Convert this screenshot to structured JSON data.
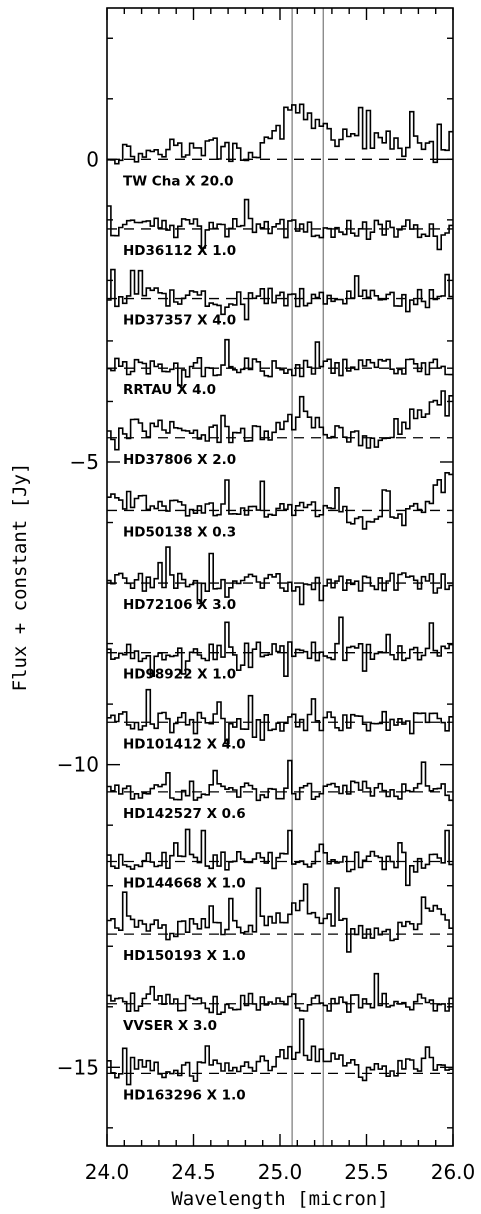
{
  "chart_data": {
    "type": "line",
    "xlabel": "Wavelength [micron]",
    "ylabel": "Flux + constant [Jy]",
    "xlim": [
      24.0,
      26.0
    ],
    "ylim": [
      -16.3,
      2.5
    ],
    "x_ticks": [
      24.0,
      24.5,
      25.0,
      25.5,
      26.0
    ],
    "x_tick_labels": [
      "24.0",
      "24.5",
      "25.0",
      "25.5",
      "26.0"
    ],
    "y_ticks": [
      0,
      -5,
      -10,
      -15
    ],
    "y_tick_labels": [
      "0",
      "−5",
      "−10",
      "−15"
    ],
    "vertical_lines": [
      25.07,
      25.25
    ],
    "series": [
      {
        "name": "TW Cha X 20.0",
        "offset": 0.0,
        "profile": "tw",
        "x": [
          24.0,
          24.1,
          24.2,
          24.3,
          24.4,
          24.5,
          24.6,
          24.7,
          24.8,
          24.9,
          25.0,
          25.05,
          25.1,
          25.15,
          25.2,
          25.3,
          25.4,
          25.5,
          25.6,
          25.7,
          25.8,
          25.9,
          26.0
        ],
        "y": [
          0.05,
          0.1,
          0.05,
          0.2,
          0.2,
          0.1,
          0.2,
          0.1,
          0.05,
          0.2,
          0.4,
          0.8,
          0.9,
          0.7,
          0.6,
          0.3,
          0.4,
          0.3,
          0.4,
          0.2,
          0.2,
          0.1,
          0.4
        ]
      },
      {
        "name": "HD36112 X 1.0",
        "offset": -1.15,
        "profile": "flat"
      },
      {
        "name": "HD37357 X 4.0",
        "offset": -2.3,
        "profile": "flat"
      },
      {
        "name": "RRTAU X 4.0",
        "offset": -3.45,
        "profile": "flat"
      },
      {
        "name": "HD37806 X 2.0",
        "offset": -4.6,
        "profile": "bump",
        "x": [
          24.0,
          24.2,
          24.4,
          24.6,
          24.8,
          25.0,
          25.1,
          25.2,
          25.3,
          25.4,
          25.5,
          25.6,
          25.7,
          25.8,
          25.9,
          26.0
        ],
        "y": [
          0.1,
          0.15,
          0.1,
          0.05,
          0.05,
          0.1,
          0.3,
          0.25,
          0.1,
          0.0,
          -0.1,
          0.0,
          0.2,
          0.4,
          0.6,
          0.8
        ]
      },
      {
        "name": "HD50138 X 0.3",
        "offset": -5.8,
        "profile": "bump",
        "x": [
          24.0,
          24.2,
          24.4,
          24.6,
          24.8,
          25.0,
          25.2,
          25.4,
          25.5,
          25.6,
          25.7,
          25.8,
          25.9,
          26.0
        ],
        "y": [
          0.2,
          0.1,
          0.05,
          0.0,
          0.0,
          0.05,
          0.05,
          -0.1,
          -0.2,
          -0.25,
          -0.2,
          0.0,
          0.3,
          0.6
        ]
      },
      {
        "name": "HD72106 X 3.0",
        "offset": -7.0,
        "profile": "flat"
      },
      {
        "name": "HD98922 X 1.0",
        "offset": -8.15,
        "profile": "flat"
      },
      {
        "name": "HD101412 X 4.0",
        "offset": -9.3,
        "profile": "flat"
      },
      {
        "name": "HD142527 X 0.6",
        "offset": -10.45,
        "profile": "flat"
      },
      {
        "name": "HD144668 X 1.0",
        "offset": -11.6,
        "profile": "flat"
      },
      {
        "name": "HD150193 X 1.0",
        "offset": -12.8,
        "profile": "bump",
        "x": [
          24.0,
          24.2,
          24.4,
          24.6,
          24.8,
          25.0,
          25.1,
          25.2,
          25.3,
          25.4,
          25.5,
          25.6,
          25.7,
          25.8,
          25.9,
          26.0
        ],
        "y": [
          0.1,
          0.15,
          0.1,
          0.1,
          0.1,
          0.3,
          0.45,
          0.35,
          0.25,
          0.05,
          -0.05,
          -0.05,
          0.05,
          0.2,
          0.3,
          0.4
        ]
      },
      {
        "name": "VVSER X 3.0",
        "offset": -13.95,
        "profile": "flat"
      },
      {
        "name": "HD163296 X 1.0",
        "offset": -15.1,
        "profile": "bump",
        "x": [
          24.0,
          24.2,
          24.4,
          24.6,
          24.8,
          25.0,
          25.1,
          25.2,
          25.3,
          25.4,
          25.5,
          25.6,
          25.8,
          26.0
        ],
        "y": [
          0.05,
          0.1,
          0.05,
          0.05,
          0.1,
          0.2,
          0.35,
          0.3,
          0.2,
          0.1,
          0.0,
          0.05,
          0.1,
          0.2
        ]
      }
    ]
  }
}
